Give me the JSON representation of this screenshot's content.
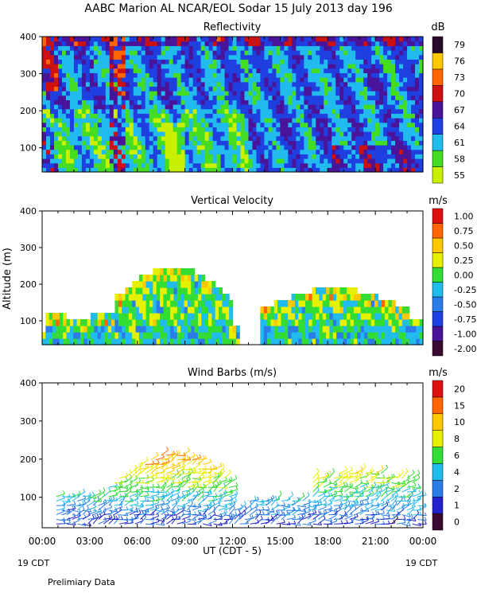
{
  "title": "AABC Marion AL NCAR/EOL Sodar  15 July 2013 day 196",
  "footer": {
    "left_date": "19 CDT",
    "right_date": "19 CDT",
    "xlabel": "UT  (CDT - 5)",
    "note": "Prelimiary Data"
  },
  "x_ticks": [
    "00:00",
    "03:00",
    "06:00",
    "09:00",
    "12:00",
    "15:00",
    "18:00",
    "21:00",
    "00:00"
  ],
  "chart_data": [
    {
      "type": "heatmap",
      "title": "Reflectivity",
      "ylabel": "",
      "ylim": [
        35,
        400
      ],
      "xlim": [
        0,
        24
      ],
      "y_ticks": [
        100,
        200,
        300,
        400
      ],
      "colorbar_unit": "dB",
      "colorbar_labels": [
        "55",
        "58",
        "61",
        "64",
        "67",
        "70",
        "73",
        "76",
        "79"
      ],
      "colorbar_colors": [
        "#c8f000",
        "#44dd22",
        "#22bbee",
        "#1f3fe0",
        "#4a149a",
        "#cc1111",
        "#ff6600",
        "#ffc800",
        "#2a0a2a"
      ],
      "grid": false
    },
    {
      "type": "heatmap",
      "title": "Vertical Velocity",
      "ylabel": "Altitude (m)",
      "ylim": [
        35,
        400
      ],
      "xlim": [
        0,
        24
      ],
      "y_ticks": [
        100,
        200,
        300,
        400
      ],
      "colorbar_unit": "m/s",
      "colorbar_labels": [
        "-2.00",
        "-1.00",
        "-0.75",
        "-0.50",
        "-0.25",
        "0.00",
        "0.25",
        "0.50",
        "0.75",
        "1.00"
      ],
      "colorbar_colors": [
        "#3a0a30",
        "#4a1499",
        "#1f3fe0",
        "#2a7de8",
        "#22bbee",
        "#33dd33",
        "#e6f000",
        "#ffc800",
        "#ff6600",
        "#dd1111"
      ],
      "grid": false
    },
    {
      "type": "scatter",
      "title": "Wind Barbs (m/s)",
      "ylabel": "",
      "ylim": [
        20,
        400
      ],
      "xlim": [
        0,
        24
      ],
      "y_ticks": [
        100,
        200,
        300,
        400
      ],
      "colorbar_unit": "m/s",
      "colorbar_labels": [
        "0",
        "1",
        "2",
        "4",
        "6",
        "8",
        "10",
        "15",
        "20"
      ],
      "colorbar_colors": [
        "#3a0a30",
        "#2222cc",
        "#2a7de8",
        "#22bbee",
        "#33dd33",
        "#e6f000",
        "#ffc800",
        "#ff6600",
        "#dd1111"
      ],
      "grid": false
    }
  ]
}
